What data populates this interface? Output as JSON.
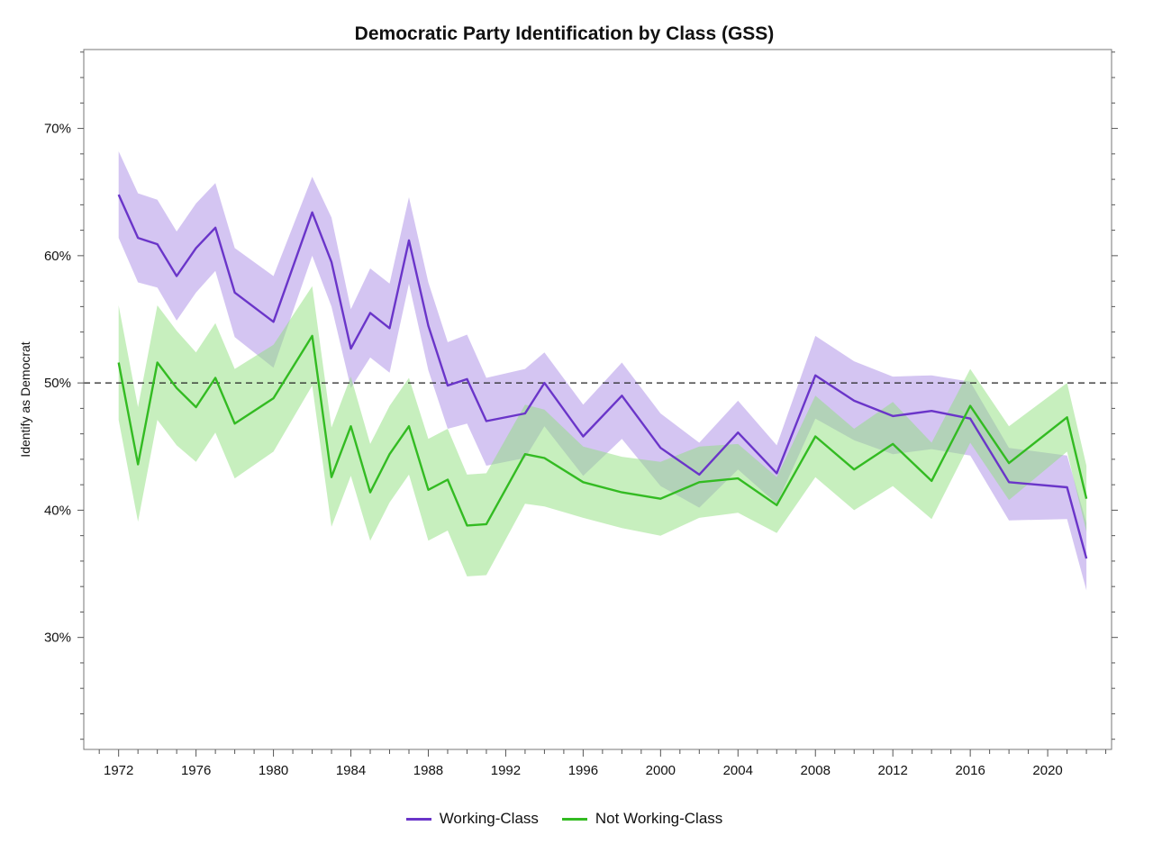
{
  "chart_data": {
    "type": "line",
    "title": "Democratic Party Identification by Class (GSS)",
    "xlabel": "",
    "ylabel": "Identify as Democrat",
    "xlim": [
      1970.2,
      2023.3
    ],
    "ylim": [
      21.2,
      76.2
    ],
    "x_ticks": [
      1972,
      1976,
      1980,
      1984,
      1988,
      1992,
      1996,
      2000,
      2004,
      2008,
      2012,
      2016,
      2020
    ],
    "x_tick_labels": [
      "1972",
      "1976",
      "1980",
      "1984",
      "1988",
      "1992",
      "1996",
      "2000",
      "2004",
      "2008",
      "2012",
      "2016",
      "2020"
    ],
    "y_ticks": [
      30,
      40,
      50,
      60,
      70
    ],
    "y_tick_labels": [
      "30%",
      "40%",
      "50%",
      "60%",
      "70%"
    ],
    "reference_line": {
      "y": 50,
      "style": "dashed"
    },
    "legend_position": "bottom-center",
    "series": [
      {
        "name": "Working-Class",
        "color": "#6a35c9",
        "band_color": "#a98ce6",
        "x": [
          1972,
          1973,
          1974,
          1975,
          1976,
          1977,
          1978,
          1980,
          1982,
          1983,
          1984,
          1985,
          1986,
          1987,
          1988,
          1989,
          1990,
          1991,
          1993,
          1994,
          1996,
          1998,
          2000,
          2002,
          2004,
          2006,
          2008,
          2010,
          2012,
          2014,
          2016,
          2018,
          2021,
          2022
        ],
        "values": [
          64.8,
          61.4,
          60.9,
          58.4,
          60.6,
          62.2,
          57.1,
          54.8,
          63.4,
          59.5,
          52.7,
          55.5,
          54.3,
          61.2,
          54.5,
          49.8,
          50.3,
          47.0,
          47.6,
          50.0,
          45.8,
          49.0,
          44.9,
          42.8,
          46.1,
          42.9,
          50.6,
          48.6,
          47.4,
          47.8,
          47.2,
          42.2,
          41.8,
          36.2
        ],
        "lower": [
          61.4,
          57.9,
          57.5,
          54.9,
          57.1,
          58.8,
          53.6,
          51.2,
          60.0,
          56.0,
          49.6,
          52.0,
          50.8,
          57.8,
          51.0,
          46.4,
          46.8,
          43.5,
          44.1,
          46.6,
          42.7,
          45.6,
          41.9,
          40.2,
          43.2,
          40.5,
          47.2,
          45.5,
          44.4,
          44.8,
          44.3,
          39.2,
          39.3,
          33.7
        ],
        "upper": [
          68.2,
          64.9,
          64.4,
          61.9,
          64.1,
          65.7,
          60.6,
          58.4,
          66.2,
          63.0,
          55.8,
          59.0,
          57.8,
          64.6,
          57.9,
          53.2,
          53.8,
          50.4,
          51.1,
          52.4,
          48.3,
          51.6,
          47.6,
          45.3,
          48.6,
          45.1,
          53.7,
          51.7,
          50.5,
          50.6,
          50.1,
          44.9,
          44.3,
          39.0
        ]
      },
      {
        "name": "Not Working-Class",
        "color": "#33bb22",
        "band_color": "#90e07e",
        "x": [
          1972,
          1973,
          1974,
          1975,
          1976,
          1977,
          1978,
          1980,
          1982,
          1983,
          1984,
          1985,
          1986,
          1987,
          1988,
          1989,
          1990,
          1991,
          1993,
          1994,
          1996,
          1998,
          2000,
          2002,
          2004,
          2006,
          2008,
          2010,
          2012,
          2014,
          2016,
          2018,
          2021,
          2022
        ],
        "values": [
          51.6,
          43.6,
          51.6,
          49.6,
          48.1,
          50.4,
          46.8,
          48.8,
          53.7,
          42.6,
          46.6,
          41.4,
          44.4,
          46.6,
          41.6,
          42.4,
          38.8,
          38.9,
          44.4,
          44.1,
          42.2,
          41.4,
          40.9,
          42.2,
          42.5,
          40.4,
          45.8,
          43.2,
          45.2,
          42.3,
          48.2,
          43.7,
          47.3,
          40.9
        ],
        "lower": [
          47.1,
          39.1,
          47.1,
          45.1,
          43.8,
          46.1,
          42.5,
          44.6,
          49.8,
          38.7,
          42.7,
          37.6,
          40.6,
          42.8,
          37.6,
          38.4,
          34.8,
          34.9,
          40.5,
          40.3,
          39.4,
          38.6,
          38.0,
          39.4,
          39.8,
          38.2,
          42.6,
          40.0,
          41.9,
          39.3,
          45.3,
          40.8,
          44.6,
          38.3
        ],
        "upper": [
          56.1,
          48.1,
          56.1,
          54.1,
          52.4,
          54.7,
          51.1,
          53.0,
          57.6,
          46.5,
          50.5,
          45.2,
          48.2,
          50.4,
          45.6,
          46.4,
          42.8,
          42.9,
          48.3,
          47.9,
          45.0,
          44.2,
          43.8,
          45.0,
          45.2,
          42.6,
          49.0,
          46.4,
          48.5,
          45.3,
          51.1,
          46.6,
          50.0,
          43.5
        ]
      }
    ]
  }
}
